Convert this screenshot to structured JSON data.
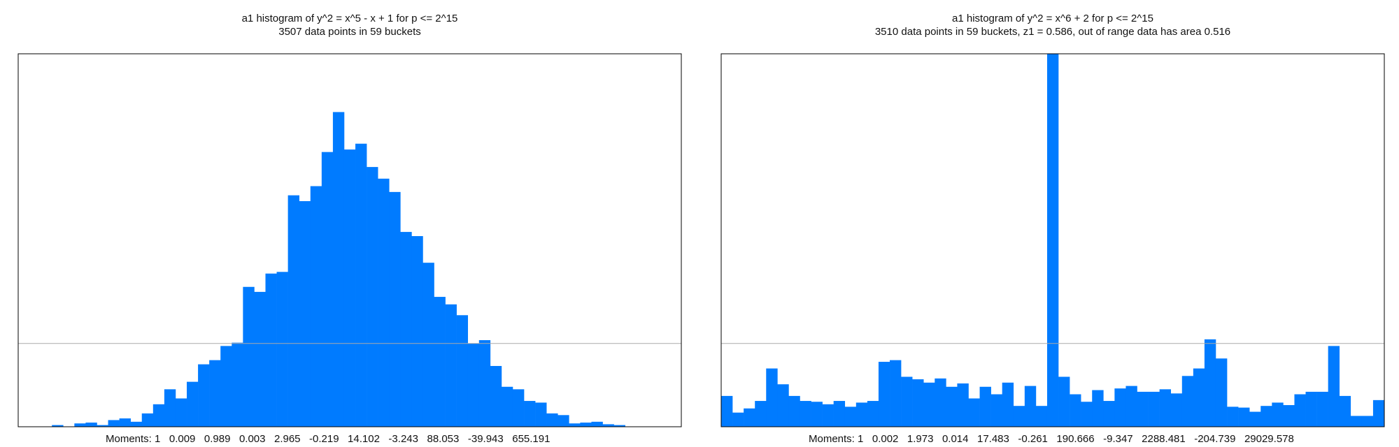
{
  "chart_data": [
    {
      "type": "bar",
      "title": "a1 histogram of y^2 = x^5 - x + 1 for p <= 2^15",
      "subtitle": "3507 data points in 59 buckets",
      "moments": "Moments: 1   0.009   0.989   0.003   2.965   -0.219   14.102   -3.243   88.053   -39.943   655.191",
      "color": "#007bff",
      "ylim": [
        0,
        4.48
      ],
      "reference_line": 1,
      "values": [
        0,
        0,
        0,
        0.02,
        0,
        0.04,
        0.05,
        0.02,
        0.08,
        0.1,
        0.06,
        0.16,
        0.27,
        0.45,
        0.34,
        0.54,
        0.75,
        0.8,
        0.97,
        1.01,
        1.68,
        1.62,
        1.84,
        1.86,
        2.78,
        2.71,
        2.89,
        3.3,
        3.78,
        3.33,
        3.4,
        3.12,
        2.98,
        2.82,
        2.34,
        2.29,
        1.97,
        1.56,
        1.47,
        1.34,
        1.0,
        1.04,
        0.73,
        0.48,
        0.45,
        0.31,
        0.29,
        0.16,
        0.14,
        0.04,
        0.05,
        0.06,
        0.03,
        0.02,
        0,
        0,
        0,
        0,
        0
      ]
    },
    {
      "type": "bar",
      "title": "a1 histogram of y^2 = x^6 + 2 for p <= 2^15",
      "subtitle": "3510 data points in 59 buckets, z1 = 0.586, out of range data has area 0.516",
      "moments": "Moments: 1   0.002   1.973   0.014   17.483   -0.261   190.666   -9.347   2288.481   -204.739   29029.578",
      "color": "#007bff",
      "ylim": [
        0,
        4.48
      ],
      "reference_line": 1,
      "values": [
        0.37,
        0.17,
        0.22,
        0.31,
        0.7,
        0.51,
        0.37,
        0.31,
        0.3,
        0.27,
        0.31,
        0.24,
        0.29,
        0.31,
        0.78,
        0.8,
        0.6,
        0.57,
        0.53,
        0.58,
        0.48,
        0.52,
        0.34,
        0.48,
        0.39,
        0.53,
        0.25,
        0.49,
        0.25,
        4.48,
        0.6,
        0.39,
        0.3,
        0.44,
        0.31,
        0.46,
        0.49,
        0.42,
        0.42,
        0.45,
        0.4,
        0.61,
        0.7,
        1.05,
        0.82,
        0.24,
        0.23,
        0.18,
        0.25,
        0.29,
        0.26,
        0.39,
        0.42,
        0.42,
        0.97,
        0.37,
        0.13,
        0.13,
        0.32
      ]
    }
  ]
}
